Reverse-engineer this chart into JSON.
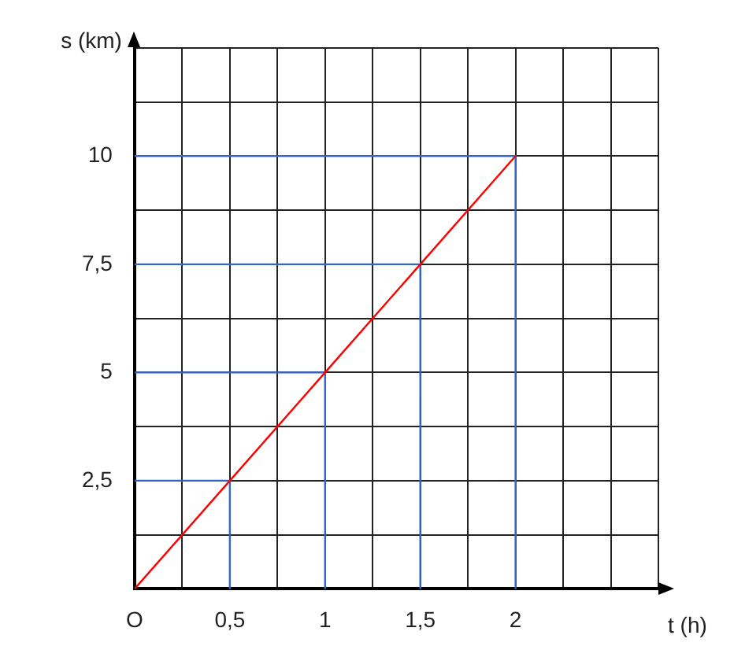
{
  "chart_data": {
    "type": "line",
    "xlabel": "t (h)",
    "ylabel": "s (km)",
    "xlim": [
      0,
      2.75
    ],
    "ylim": [
      0,
      12.5
    ],
    "xticks": [
      {
        "value": 0,
        "label": "O"
      },
      {
        "value": 0.25,
        "label": null
      },
      {
        "value": 0.5,
        "label": "0,5"
      },
      {
        "value": 0.75,
        "label": null
      },
      {
        "value": 1,
        "label": "1"
      },
      {
        "value": 1.25,
        "label": null
      },
      {
        "value": 1.5,
        "label": "1,5"
      },
      {
        "value": 1.75,
        "label": null
      },
      {
        "value": 2,
        "label": "2"
      },
      {
        "value": 2.25,
        "label": null
      },
      {
        "value": 2.5,
        "label": null
      },
      {
        "value": 2.75,
        "label": null
      }
    ],
    "yticks": [
      {
        "value": 0,
        "label": null
      },
      {
        "value": 1.25,
        "label": null
      },
      {
        "value": 2.5,
        "label": "2,5"
      },
      {
        "value": 3.75,
        "label": null
      },
      {
        "value": 5,
        "label": "5"
      },
      {
        "value": 6.25,
        "label": null
      },
      {
        "value": 7.5,
        "label": "7,5"
      },
      {
        "value": 8.75,
        "label": null
      },
      {
        "value": 10,
        "label": "10"
      },
      {
        "value": 11.25,
        "label": null
      },
      {
        "value": 12.5,
        "label": null
      }
    ],
    "grid": true,
    "legend": false,
    "marker": "none",
    "line_style": "solid",
    "series": [
      {
        "color": "#ff0000",
        "x": [
          0,
          0.5,
          1,
          1.5,
          2
        ],
        "values": [
          0,
          2.5,
          5,
          7.5,
          10
        ]
      },
      {
        "color": "#3366cc",
        "x": [
          0,
          0.5,
          0.5
        ],
        "values": [
          2.5,
          2.5,
          0
        ]
      },
      {
        "color": "#3366cc",
        "x": [
          0,
          1,
          1
        ],
        "values": [
          5,
          5,
          0
        ]
      },
      {
        "color": "#3366cc",
        "x": [
          0,
          1.5,
          1.5
        ],
        "values": [
          7.5,
          7.5,
          0
        ]
      },
      {
        "color": "#3366cc",
        "x": [
          0,
          2,
          2
        ],
        "values": [
          10,
          10,
          0
        ]
      }
    ]
  }
}
